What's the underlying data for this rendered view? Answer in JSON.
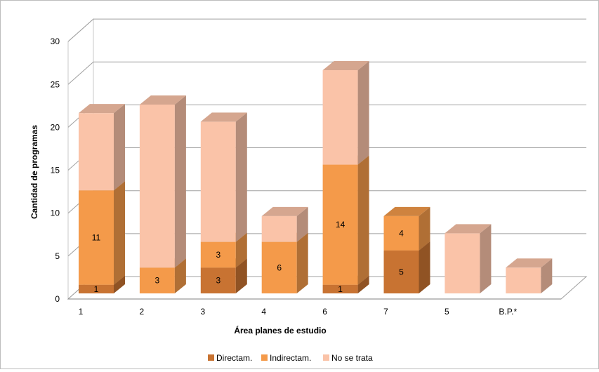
{
  "chart_data": {
    "type": "bar",
    "stacked": true,
    "three_d": true,
    "categories": [
      "1",
      "2",
      "3",
      "4",
      "6",
      "7",
      "5",
      "B.P.*"
    ],
    "series": [
      {
        "name": "Directam.",
        "color": "#C87332",
        "values": [
          1,
          0,
          3,
          0,
          1,
          5,
          0,
          0
        ],
        "labels": [
          "1",
          "",
          "3",
          "",
          "1",
          "5",
          "",
          ""
        ]
      },
      {
        "name": "Indirectam.",
        "color": "#F49A4A",
        "values": [
          11,
          3,
          3,
          6,
          14,
          4,
          0,
          0
        ],
        "labels": [
          "11",
          "3",
          "3",
          "6",
          "14",
          "4",
          "",
          ""
        ]
      },
      {
        "name": "No se trata",
        "color": "#FAC3A8",
        "values": [
          9,
          19,
          14,
          3,
          11,
          0,
          7,
          3
        ],
        "labels": [
          "",
          "",
          "",
          "",
          "",
          "",
          "",
          ""
        ]
      }
    ],
    "xlabel": "Área planes de estudio",
    "ylabel": "Cantidad de programas",
    "ylim": [
      0,
      30
    ],
    "yticks": [
      "0",
      "5",
      "10",
      "15",
      "20",
      "25",
      "30"
    ],
    "grid": true,
    "legend": "bottom"
  }
}
